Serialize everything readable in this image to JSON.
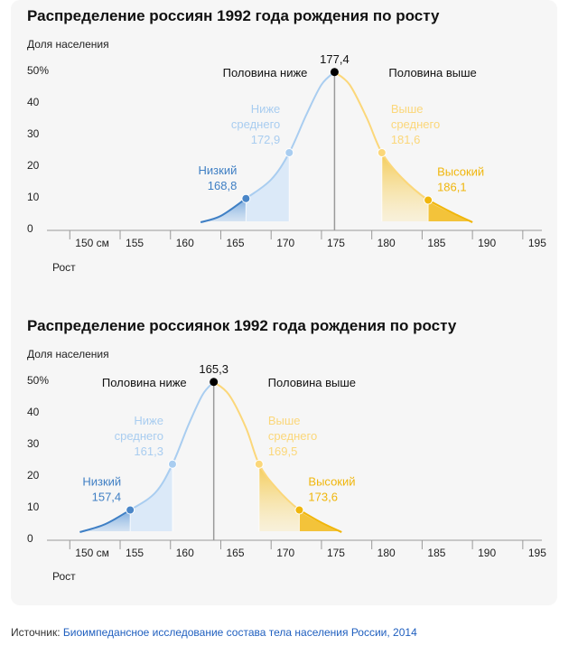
{
  "chart_data": [
    {
      "type": "area",
      "title": "Распределение россиян 1992 года рождения по росту",
      "ylabel": "Доля населения",
      "xlabel": "Рост",
      "x_ticks": [
        "150 см",
        "155",
        "160",
        "165",
        "170",
        "175",
        "180",
        "185",
        "190",
        "195"
      ],
      "x_tick_values": [
        150,
        155,
        160,
        165,
        170,
        175,
        180,
        185,
        190,
        195
      ],
      "y_ticks": [
        "0",
        "10",
        "20",
        "30",
        "40",
        "50%"
      ],
      "y_tick_values": [
        0,
        10,
        20,
        30,
        40,
        50
      ],
      "xlim": [
        148,
        196
      ],
      "ylim": [
        0,
        50
      ],
      "grid": false,
      "peak": {
        "x": 176.3,
        "y": 49.5,
        "label": "177,4"
      },
      "left_half_label": "Половина ниже",
      "right_half_label": "Половина выше",
      "curve": {
        "left": [
          [
            163.0,
            2.0
          ],
          [
            165.0,
            4.0
          ],
          [
            167.5,
            9.5
          ],
          [
            170.0,
            15.5
          ],
          [
            171.8,
            24.0
          ],
          [
            173.5,
            36.0
          ],
          [
            175.0,
            45.5
          ],
          [
            176.3,
            49.5
          ]
        ],
        "right": [
          [
            176.3,
            49.5
          ],
          [
            177.8,
            45.5
          ],
          [
            179.5,
            35.0
          ],
          [
            181.0,
            24.0
          ],
          [
            183.0,
            16.0
          ],
          [
            185.6,
            9.0
          ],
          [
            188.0,
            5.0
          ],
          [
            190.0,
            2.0
          ]
        ]
      },
      "markers": [
        {
          "x": 167.5,
          "y": 9.5,
          "name": "Низкий",
          "value": "168,8",
          "color": "#4a86c8"
        },
        {
          "x": 171.8,
          "y": 24.0,
          "name": "Ниже\nсреднего",
          "value": "172,9",
          "color": "#a9cdf0"
        },
        {
          "x": 181.0,
          "y": 24.0,
          "name": "Выше\nсреднего",
          "value": "181,6",
          "color": "#fbd77a"
        },
        {
          "x": 185.6,
          "y": 9.0,
          "name": "Высокий",
          "value": "186,1",
          "color": "#f0b60c"
        }
      ],
      "colors": {
        "low": "#3f7fc4",
        "below_avg": "#a9cdf0",
        "above_avg": "#fbd77a",
        "high": "#f0b60c",
        "peak": "#000000"
      }
    },
    {
      "type": "area",
      "title": "Распределение россиянок 1992 года рождения по росту",
      "ylabel": "Доля населения",
      "xlabel": "Рост",
      "x_ticks": [
        "150 см",
        "155",
        "160",
        "165",
        "170",
        "175",
        "180",
        "185",
        "190",
        "195"
      ],
      "x_tick_values": [
        150,
        155,
        160,
        165,
        170,
        175,
        180,
        185,
        190,
        195
      ],
      "y_ticks": [
        "0",
        "10",
        "20",
        "30",
        "40",
        "50%"
      ],
      "y_tick_values": [
        0,
        10,
        20,
        30,
        40,
        50
      ],
      "xlim": [
        148,
        196
      ],
      "ylim": [
        0,
        50
      ],
      "grid": false,
      "peak": {
        "x": 164.3,
        "y": 49.5,
        "label": "165,3"
      },
      "left_half_label": "Половина ниже",
      "right_half_label": "Половина выше",
      "curve": {
        "left": [
          [
            151.0,
            2.0
          ],
          [
            153.5,
            4.5
          ],
          [
            156.0,
            9.0
          ],
          [
            158.5,
            14.5
          ],
          [
            160.2,
            23.5
          ],
          [
            161.8,
            36.0
          ],
          [
            163.2,
            45.5
          ],
          [
            164.3,
            49.5
          ]
        ],
        "right": [
          [
            164.3,
            49.5
          ],
          [
            165.8,
            45.5
          ],
          [
            167.5,
            35.0
          ],
          [
            168.8,
            23.5
          ],
          [
            170.5,
            16.0
          ],
          [
            172.8,
            9.0
          ],
          [
            175.0,
            5.0
          ],
          [
            177.0,
            2.0
          ]
        ]
      },
      "markers": [
        {
          "x": 156.0,
          "y": 9.0,
          "name": "Низкий",
          "value": "157,4",
          "color": "#4a86c8"
        },
        {
          "x": 160.2,
          "y": 23.5,
          "name": "Ниже\nсреднего",
          "value": "161,3",
          "color": "#a9cdf0"
        },
        {
          "x": 168.8,
          "y": 23.5,
          "name": "Выше\nсреднего",
          "value": "169,5",
          "color": "#fbd77a"
        },
        {
          "x": 172.8,
          "y": 9.0,
          "name": "Высокий",
          "value": "173,6",
          "color": "#f0b60c"
        }
      ],
      "colors": {
        "low": "#3f7fc4",
        "below_avg": "#a9cdf0",
        "above_avg": "#fbd77a",
        "high": "#f0b60c",
        "peak": "#000000"
      }
    }
  ],
  "source": {
    "label": "Источник:",
    "text": "Биоимпедансное исследование состава тела населения России, 2014"
  }
}
